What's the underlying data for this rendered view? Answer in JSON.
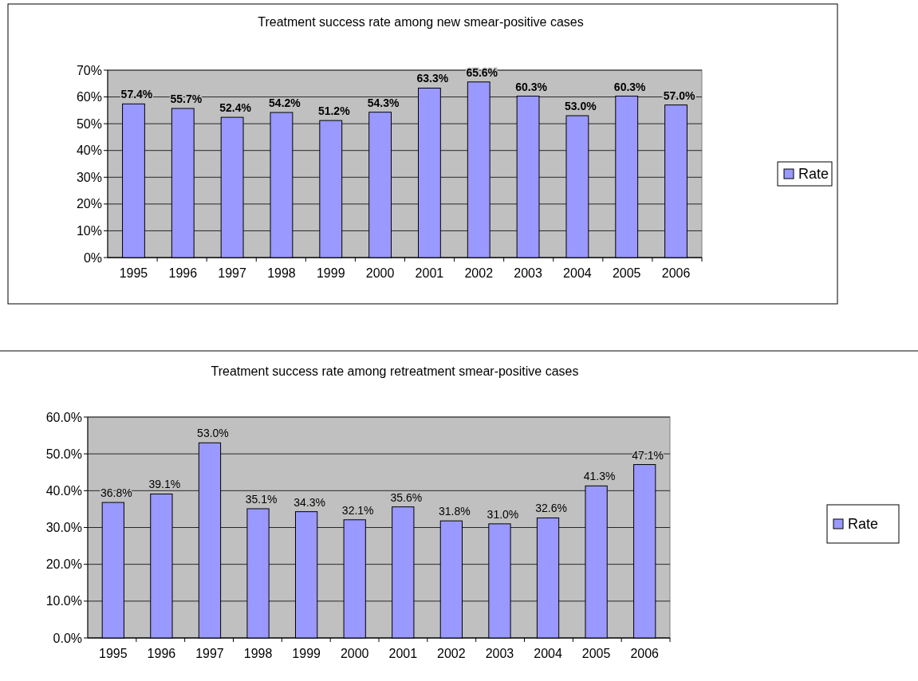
{
  "chart_data": [
    {
      "type": "bar",
      "title": "Treatment success rate among new smear-positive cases",
      "categories": [
        "1995",
        "1996",
        "1997",
        "1998",
        "1999",
        "2000",
        "2001",
        "2002",
        "2003",
        "2004",
        "2005",
        "2006"
      ],
      "series": [
        {
          "name": "Rate",
          "color": "#9999ff",
          "values": [
            57.4,
            55.7,
            52.4,
            54.2,
            51.2,
            54.3,
            63.3,
            65.6,
            60.3,
            53.0,
            60.3,
            57.0
          ],
          "value_labels": [
            "57.4%",
            "55.7%",
            "52.4%",
            "54.2%",
            "51.2%",
            "54.3%",
            "63.3%",
            "65.6%",
            "60.3%",
            "53.0%",
            "60.3%",
            "57.0%"
          ]
        }
      ],
      "ylim": [
        0,
        70
      ],
      "yticks": [
        {
          "value": 0,
          "label": "0%"
        },
        {
          "value": 10,
          "label": "10%"
        },
        {
          "value": 20,
          "label": "20%"
        },
        {
          "value": 30,
          "label": "30%"
        },
        {
          "value": 40,
          "label": "40%"
        },
        {
          "value": 50,
          "label": "50%"
        },
        {
          "value": 60,
          "label": "60%"
        },
        {
          "value": 70,
          "label": "70%"
        }
      ],
      "grid": "y",
      "legend": "right"
    },
    {
      "type": "bar",
      "title": "Treatment success rate among retreatment smear-positive cases",
      "categories": [
        "1995",
        "1996",
        "1997",
        "1998",
        "1999",
        "2000",
        "2001",
        "2002",
        "2003",
        "2004",
        "2005",
        "2006"
      ],
      "series": [
        {
          "name": "Rate",
          "color": "#9999ff",
          "values": [
            36.8,
            39.1,
            53.0,
            35.1,
            34.3,
            32.1,
            35.6,
            31.8,
            31.0,
            32.6,
            41.3,
            47.1
          ],
          "value_labels": [
            "36.8%",
            "39.1%",
            "53.0%",
            "35.1%",
            "34.3%",
            "32.1%",
            "35.6%",
            "31.8%",
            "31.0%",
            "32.6%",
            "41.3%",
            "47.1%"
          ]
        }
      ],
      "ylim": [
        0,
        60
      ],
      "yticks": [
        {
          "value": 0,
          "label": "0.0%"
        },
        {
          "value": 10,
          "label": "10.0%"
        },
        {
          "value": 20,
          "label": "20.0%"
        },
        {
          "value": 30,
          "label": "30.0%"
        },
        {
          "value": 40,
          "label": "40.0%"
        },
        {
          "value": 50,
          "label": "50.0%"
        },
        {
          "value": 60,
          "label": "60.0%"
        }
      ],
      "grid": "y",
      "legend": "right"
    }
  ]
}
